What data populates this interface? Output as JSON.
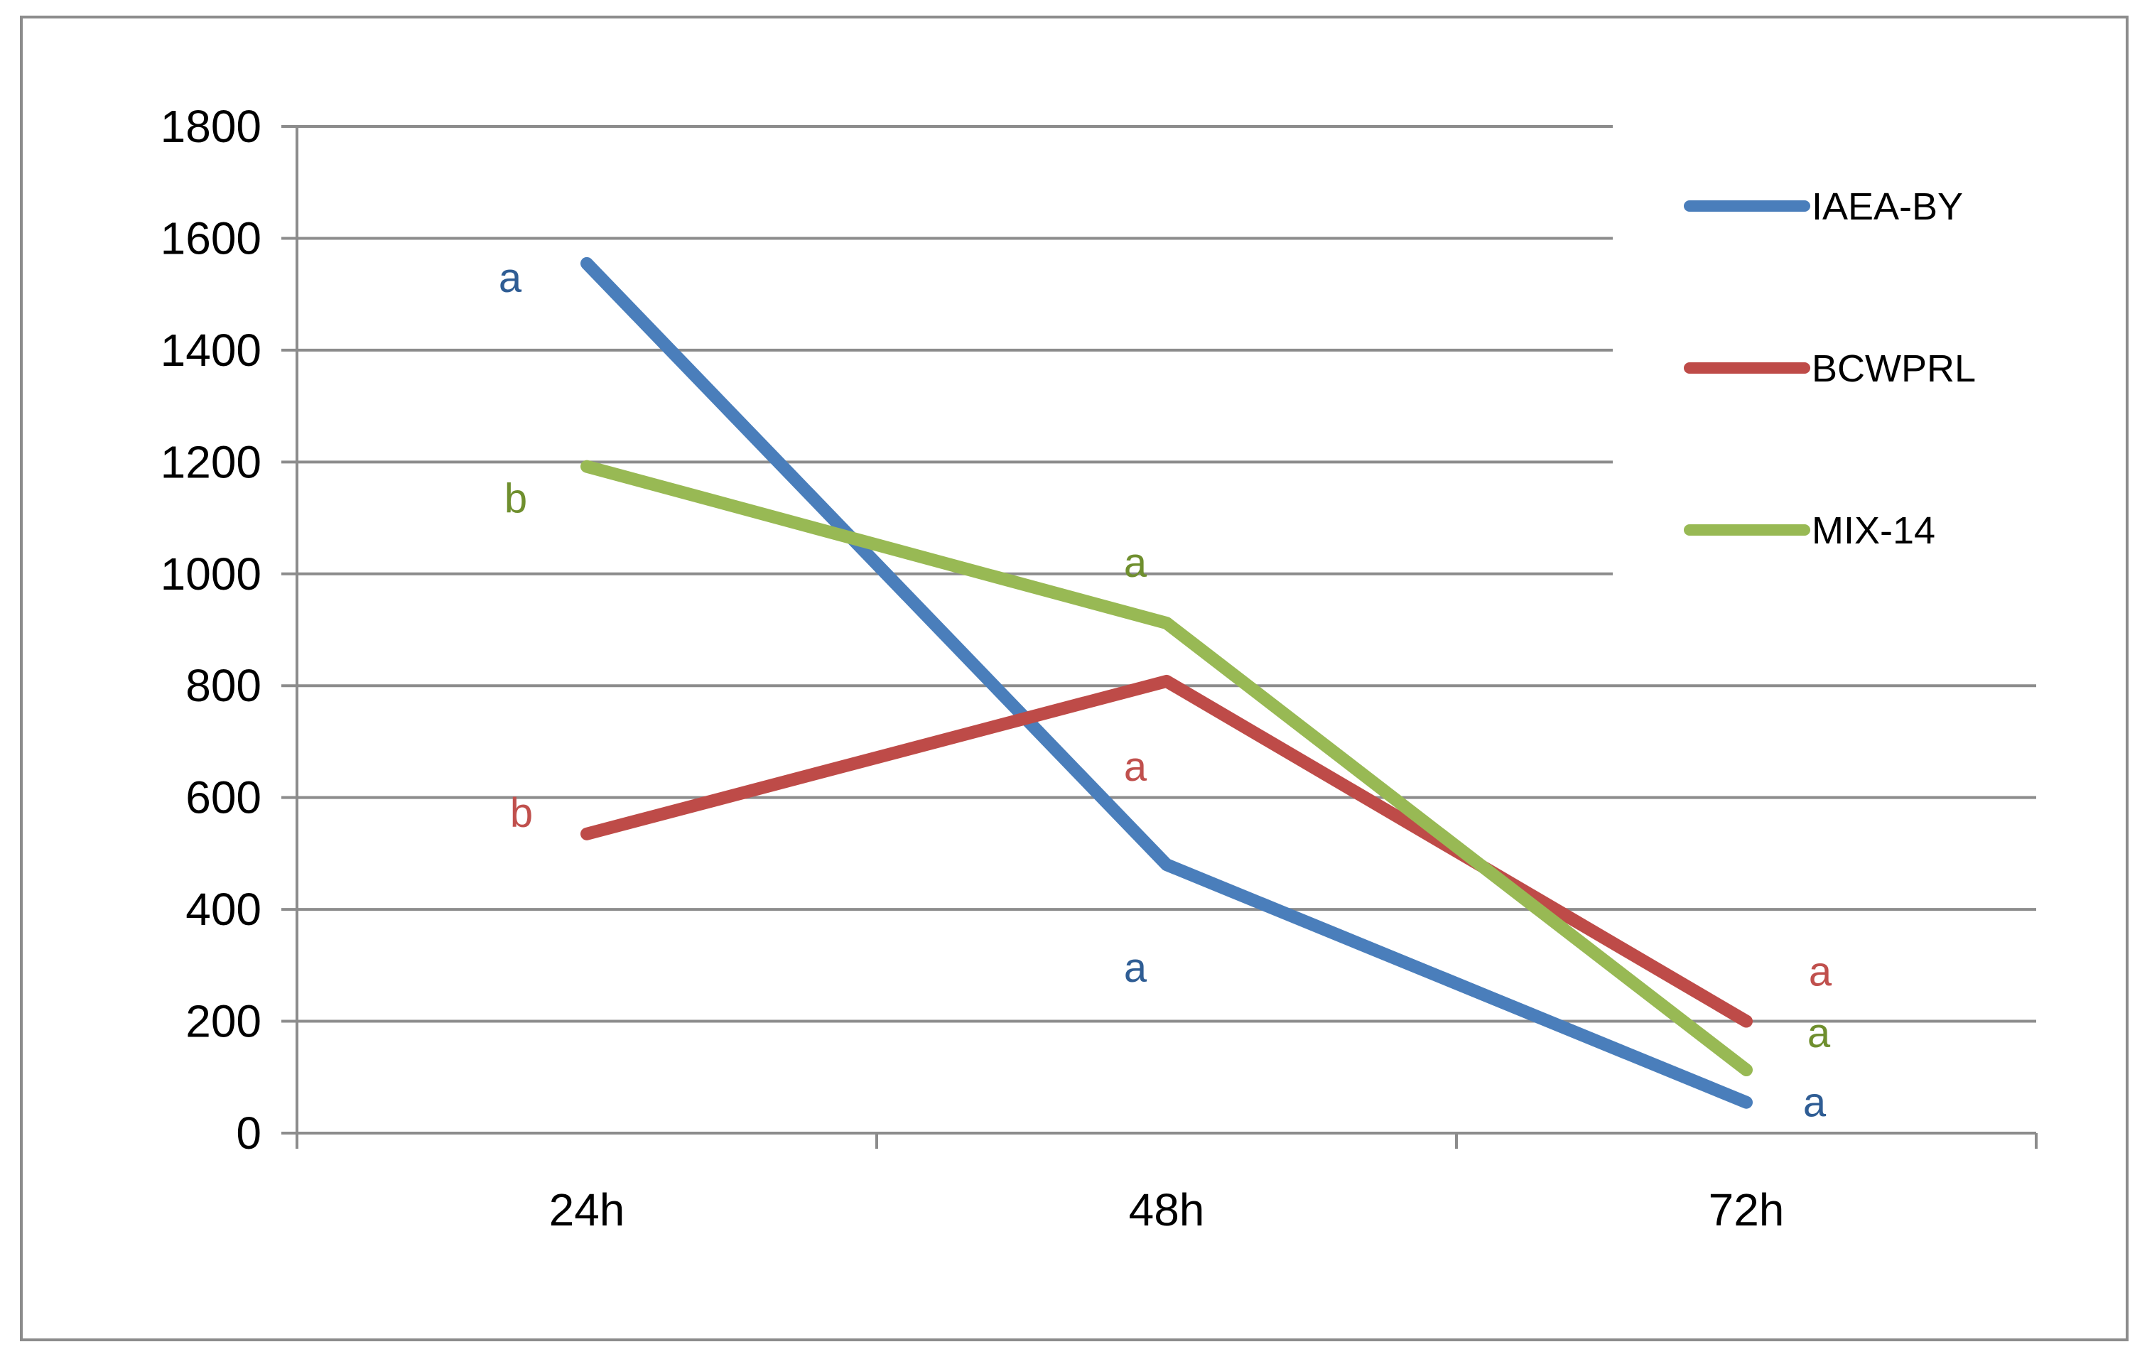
{
  "chart_data": {
    "type": "line",
    "categories": [
      "24h",
      "48h",
      "72h"
    ],
    "series": [
      {
        "name": "IAEA-BY",
        "color": "#4a7ebb",
        "values": [
          1555,
          480,
          55
        ],
        "annotations": [
          "a",
          "a",
          "a"
        ]
      },
      {
        "name": "BCWPRL",
        "color": "#be4b48",
        "values": [
          535,
          808,
          200
        ],
        "annotations": [
          "b",
          "a",
          "a"
        ]
      },
      {
        "name": "MIX-14",
        "color": "#98b954",
        "values": [
          1192,
          912,
          113
        ],
        "annotations": [
          "b",
          "a",
          "a"
        ]
      }
    ],
    "ylim": [
      0,
      1800
    ],
    "yticks": [
      0,
      200,
      400,
      600,
      800,
      1000,
      1200,
      1400,
      1600,
      1800
    ],
    "grid": true,
    "legend_position": "top-right",
    "title": "",
    "xlabel": "",
    "ylabel": ""
  }
}
